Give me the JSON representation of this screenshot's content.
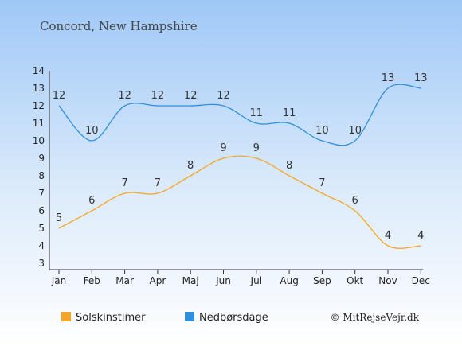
{
  "chart_data": {
    "type": "line",
    "title": "Concord, New Hampshire",
    "categories": [
      "Jan",
      "Feb",
      "Mar",
      "Apr",
      "Maj",
      "Jun",
      "Jul",
      "Aug",
      "Sep",
      "Okt",
      "Nov",
      "Dec"
    ],
    "series": [
      {
        "name": "Solskinstimer",
        "values": [
          5,
          6,
          7,
          7,
          8,
          9,
          9,
          8,
          7,
          6,
          4,
          4
        ],
        "color": "#f5a623"
      },
      {
        "name": "Nedbørsdage",
        "values": [
          12,
          10,
          12,
          12,
          12,
          12,
          11,
          11,
          10,
          10,
          13,
          13
        ],
        "color": "#2f8fdc"
      }
    ],
    "yticks": [
      3,
      4,
      5,
      6,
      7,
      8,
      9,
      10,
      11,
      12,
      13,
      14
    ],
    "ylim": [
      3,
      14
    ],
    "grid": false,
    "legend": "bottom-left"
  },
  "credit": "© MitRejseVejr.dk"
}
